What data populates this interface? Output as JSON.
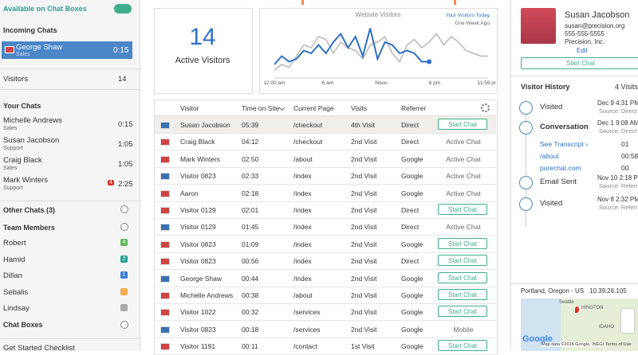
{
  "sidebar": {
    "availability": "Available on Chat Boxes",
    "incoming_title": "Incoming Chats",
    "incoming": [
      {
        "name": "George Shaw",
        "dept": "Sales",
        "time": "0:15"
      }
    ],
    "visitors_label": "Visitors",
    "visitors_count": 14,
    "your_chats_title": "Your Chats",
    "your_chats": [
      {
        "name": "Michelle Andrews",
        "dept": "Sales",
        "time": "0:15"
      },
      {
        "name": "Susan Jacobson",
        "dept": "Support",
        "time": "1:05"
      },
      {
        "name": "Craig Black",
        "dept": "Sales",
        "time": "1:05"
      },
      {
        "name": "Mark Winters",
        "dept": "Support",
        "time": "2:25",
        "badge": "4",
        "badge_color": "#d9312b"
      }
    ],
    "other_chats": "Other Chats (3)",
    "team_title": "Team Members",
    "team": [
      {
        "name": "Robert",
        "badge": "4",
        "badge_color": "#5cb85c"
      },
      {
        "name": "Hamid",
        "badge": "2",
        "badge_color": "#2aa198"
      },
      {
        "name": "Dillan",
        "badge": "1",
        "badge_color": "#3a7bd5"
      },
      {
        "name": "Sebalis",
        "badge_color": "#f0ad4e"
      },
      {
        "name": "Lindsay",
        "badge_color": "#aaaaaa"
      }
    ],
    "chat_boxes": "Chat Boxes",
    "checklist": "Get Started Checklist"
  },
  "stats": {
    "value": 14,
    "label": "Active Visitors"
  },
  "visitors_chart": {
    "type": "line",
    "title": "Website Visitors",
    "xtick_labels": [
      "12:00 am",
      "6 am",
      "Noon",
      "6 pm",
      "11:59 pm"
    ],
    "ylim": [
      0,
      100
    ],
    "series": [
      {
        "name": "Your Visitors Today",
        "color": "#2f6fc4",
        "values": [
          20,
          35,
          25,
          30,
          45,
          40,
          55,
          40,
          60,
          75,
          50,
          70,
          35,
          85,
          30,
          60,
          55,
          40,
          45,
          40,
          25,
          25,
          null,
          null,
          null,
          null,
          null,
          null,
          null,
          null
        ]
      },
      {
        "name": "One Week Ago",
        "color": "#b8b8b8",
        "values": [
          10,
          20,
          15,
          35,
          55,
          50,
          70,
          65,
          40,
          60,
          50,
          45,
          30,
          55,
          60,
          70,
          40,
          25,
          55,
          65,
          50,
          60,
          75,
          55,
          70,
          60,
          45,
          40,
          35,
          35
        ]
      }
    ]
  },
  "table": {
    "headers": [
      "Visitor",
      "Time on Site",
      "Current Page",
      "Visits",
      "Referrer"
    ],
    "rows": [
      [
        "Susan Jacobson",
        "05:39",
        "/checkout",
        "4th Visit",
        "Direct",
        "Start Chat"
      ],
      [
        "Craig Black",
        "04:12",
        "/checkout",
        "2nd Visit",
        "Direct",
        "Active Chat"
      ],
      [
        "Mark Winters",
        "02:50",
        "/about",
        "2nd Visit",
        "Google",
        "Active Chat"
      ],
      [
        "Visitor 0823",
        "02:33",
        "/index",
        "2nd Visit",
        "Google",
        "Active Chat"
      ],
      [
        "Aaron",
        "02:18",
        "/index",
        "2nd Visit",
        "Google",
        "Active Chat"
      ],
      [
        "Visitor 0129",
        "02:01",
        "/index",
        "2nd Visit",
        "Direct",
        "Start Chat"
      ],
      [
        "Visitor 0129",
        "01:45",
        "/index",
        "2nd Visit",
        "Direct",
        "Active Chat"
      ],
      [
        "Visitor 0823",
        "01:09",
        "/index",
        "2nd Visit",
        "Google",
        "Start Chat"
      ],
      [
        "Visitor 0823",
        "00:56",
        "/index",
        "2nd Visit",
        "Direct",
        "Start Chat"
      ],
      [
        "George Shaw",
        "00:44",
        "/index",
        "2nd Visit",
        "Google",
        "Start Chat"
      ],
      [
        "Michelle Andrews",
        "00:38",
        "/about",
        "2nd Visit",
        "Google",
        "Start Chat"
      ],
      [
        "Visitor 1022",
        "00:32",
        "/services",
        "2nd Visit",
        "Google",
        "Start Chat"
      ],
      [
        "Visitor 0823",
        "00:18",
        "/services",
        "2nd Visit",
        "Google",
        "Mobile"
      ],
      [
        "Visitor 1191",
        "00:11",
        "/contact",
        "1st Visit",
        "Google",
        "Start Chat"
      ]
    ],
    "button_rows": [
      true,
      false,
      false,
      false,
      false,
      true,
      false,
      true,
      true,
      true,
      true,
      true,
      false,
      true
    ]
  },
  "profile": {
    "name": "Susan Jacobson",
    "email": "susan@precision.org",
    "phone": "555-555-5555",
    "company": "Precision, Inc.",
    "edit": "Edit",
    "start_chat": "Start Chat"
  },
  "history": {
    "title": "Visitor History",
    "count": "4 Visits",
    "entries": [
      {
        "label": "Visited",
        "date": "Dec 9 4:31 PM",
        "source": "Source: Direct"
      },
      {
        "label": "Conversation",
        "date": "Dec 1 9:08 AM",
        "source": "Source: Direct"
      },
      {
        "label": "Email Sent",
        "date": "Nov 10 2:18 PM",
        "source": "Source: Referral"
      },
      {
        "label": "Visited",
        "date": "Nov 8 2:32 PM",
        "source": "Source: Referral"
      }
    ],
    "links": [
      {
        "text": "See Transcript ›",
        "time": "01"
      },
      {
        "text": "/about",
        "time": "00:58"
      },
      {
        "text": "purechat.com",
        "time": "00"
      }
    ]
  },
  "map": {
    "location": "Portland, Oregon - US",
    "ip": "10.39.26.105",
    "labels": [
      "Seattle",
      "HINGTON",
      "IDAHO"
    ],
    "footer": "Map data ©2016 Google, INEGI",
    "terms": "Terms of Use",
    "brand": "Google"
  }
}
